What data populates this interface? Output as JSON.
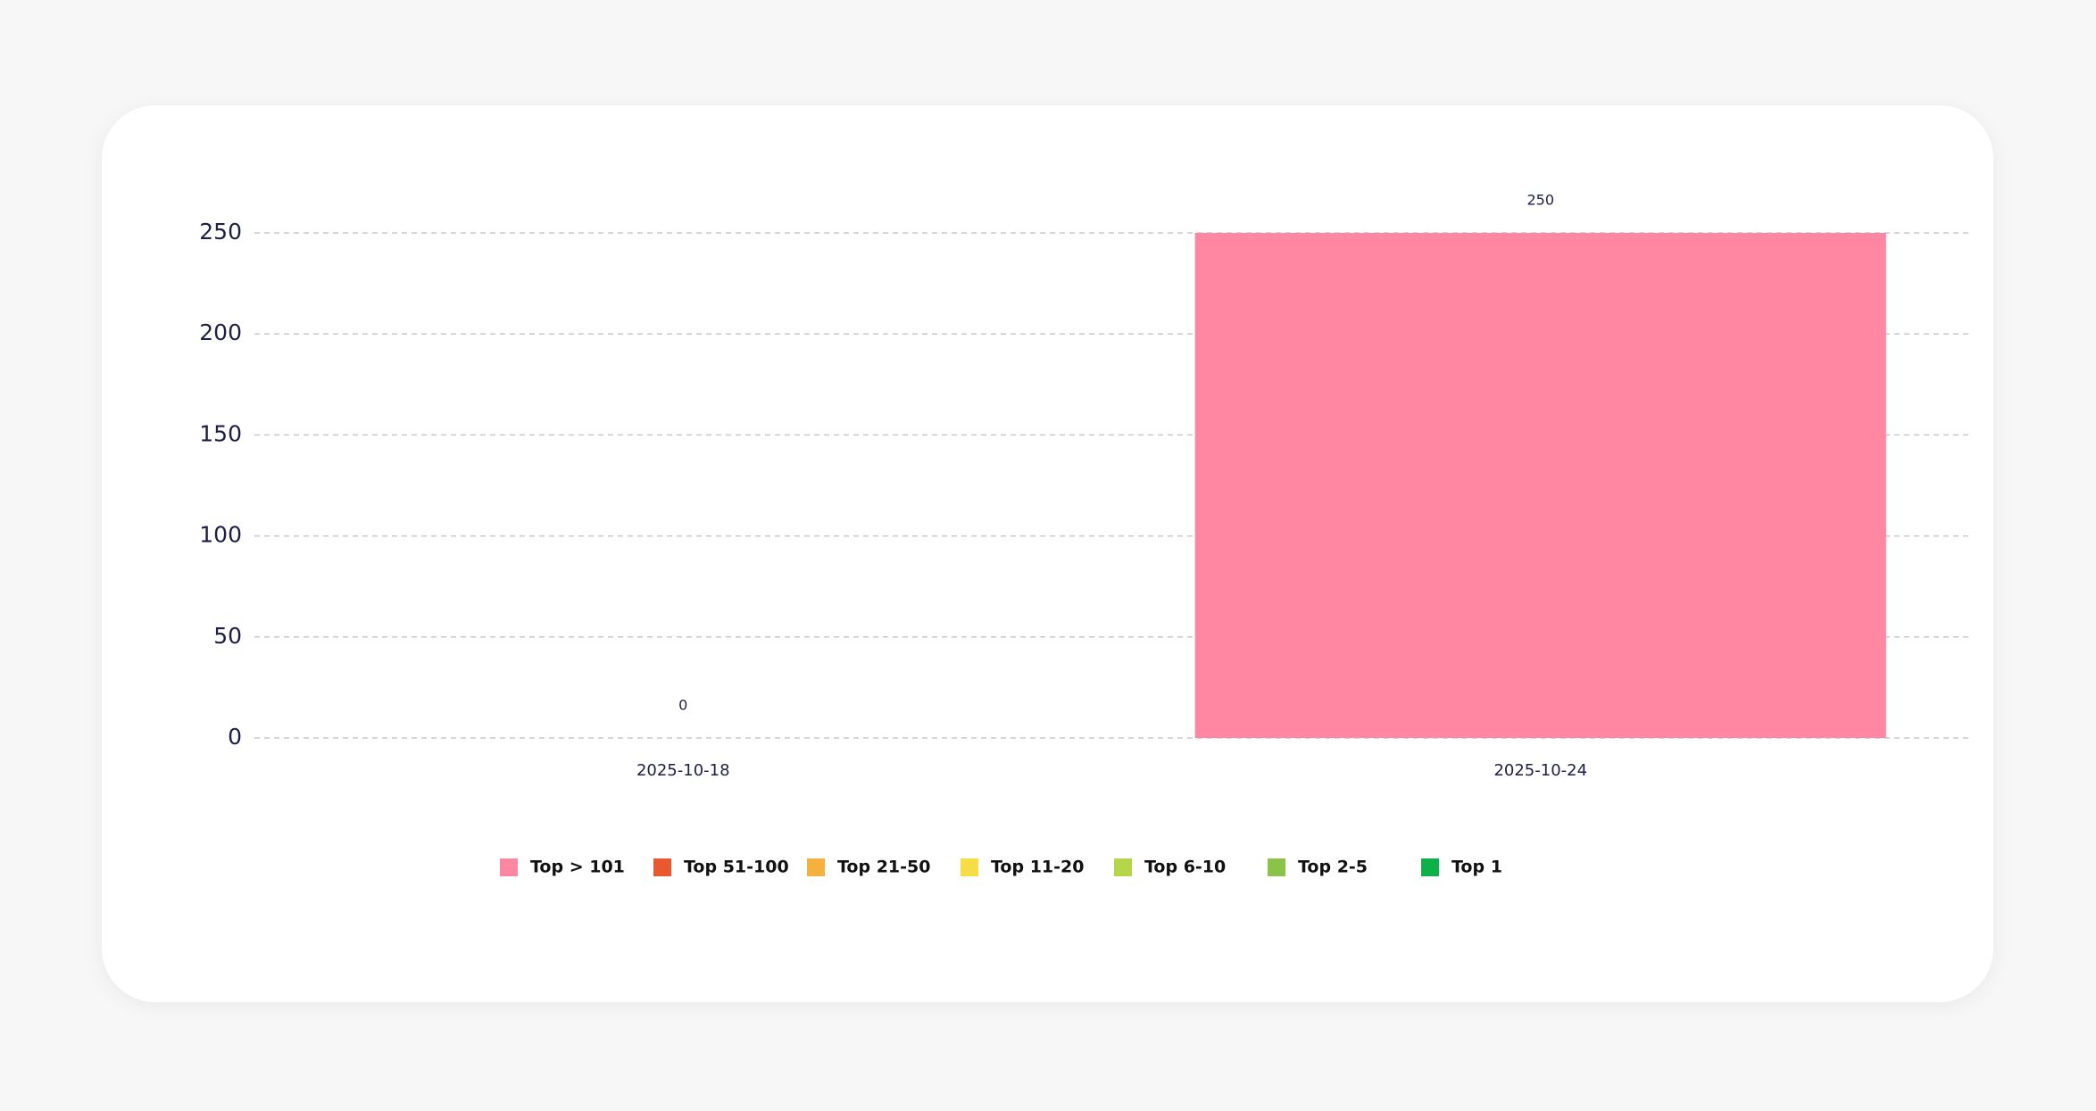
{
  "chart_data": {
    "type": "stacked_bar",
    "categories": [
      "2025-10-18",
      "2025-10-24"
    ],
    "series": [
      {
        "name": "Top > 101",
        "color": "#ff87a1",
        "values": [
          0,
          250
        ]
      },
      {
        "name": "Top 51-100",
        "color": "#e9592f",
        "values": [
          0,
          0
        ]
      },
      {
        "name": "Top 21-50",
        "color": "#f4b13e",
        "values": [
          0,
          0
        ]
      },
      {
        "name": "Top 11-20",
        "color": "#f6dc45",
        "values": [
          0,
          0
        ]
      },
      {
        "name": "Top 6-10",
        "color": "#b5d64a",
        "values": [
          0,
          0
        ]
      },
      {
        "name": "Top 2-5",
        "color": "#8bc34a",
        "values": [
          0,
          0
        ]
      },
      {
        "name": "Top 1",
        "color": "#0fb04a",
        "values": [
          0,
          0
        ]
      }
    ],
    "totals": [
      0,
      250
    ],
    "ylim": [
      0,
      250
    ],
    "yticks": [
      0,
      50,
      100,
      150,
      200,
      250
    ],
    "grid": true
  }
}
